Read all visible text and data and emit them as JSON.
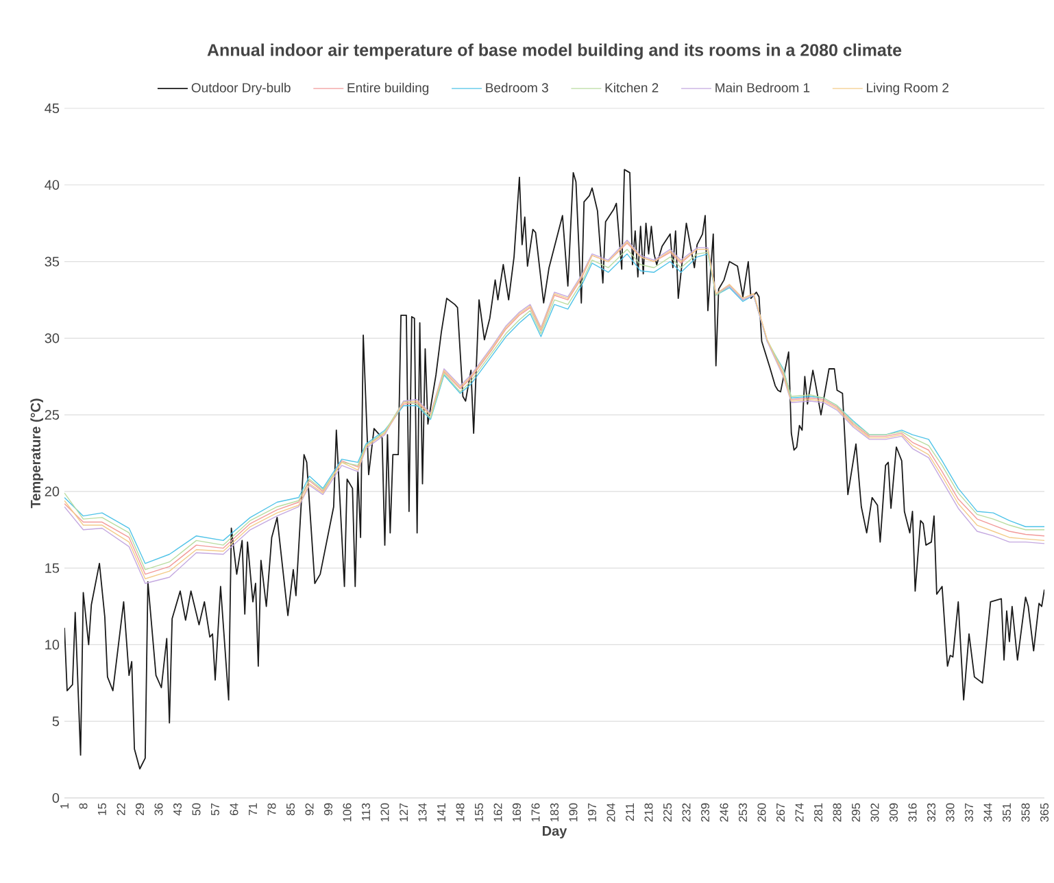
{
  "chart_data": {
    "type": "line",
    "title": "Annual indoor air temperature of base model building and its rooms in a 2080 climate",
    "xlabel": "Day",
    "ylabel": "Temperature (°C)",
    "xlim": [
      1,
      365
    ],
    "xticks": [
      1,
      8,
      15,
      22,
      29,
      36,
      43,
      50,
      57,
      64,
      71,
      78,
      85,
      92,
      99,
      106,
      113,
      120,
      127,
      134,
      141,
      148,
      155,
      162,
      169,
      176,
      183,
      190,
      197,
      204,
      211,
      218,
      225,
      232,
      239,
      246,
      253,
      260,
      267,
      274,
      281,
      288,
      295,
      302,
      309,
      316,
      323,
      330,
      337,
      344,
      351,
      358,
      365
    ],
    "ylim": [
      0,
      45
    ],
    "yticks": [
      0,
      5,
      10,
      15,
      20,
      25,
      30,
      35,
      40,
      45
    ],
    "grid": "y",
    "legend": "top",
    "line_style": "solid",
    "series": [
      {
        "name": "Outdoor Dry-bulb",
        "color": "#1a1a1a",
        "x": [
          1,
          2,
          4,
          5,
          7,
          8,
          10,
          11,
          14,
          16,
          17,
          19,
          23,
          25,
          26,
          27,
          29,
          31,
          32,
          35,
          37,
          39,
          40,
          41,
          44,
          46,
          48,
          51,
          53,
          55,
          56,
          57,
          59,
          62,
          63,
          65,
          67,
          68,
          69,
          71,
          72,
          73,
          74,
          76,
          78,
          80,
          81,
          84,
          86,
          87,
          90,
          91,
          94,
          96,
          101,
          102,
          105,
          106,
          108,
          109,
          110,
          111,
          112,
          114,
          116,
          119,
          120,
          121,
          122,
          123,
          125,
          126,
          128,
          129,
          130,
          131,
          132,
          133,
          134,
          135,
          136,
          139,
          141,
          143,
          146,
          147,
          149,
          150,
          152,
          153,
          155,
          157,
          159,
          161,
          162,
          164,
          166,
          168,
          170,
          171,
          172,
          173,
          175,
          176,
          179,
          181,
          186,
          188,
          190,
          191,
          193,
          194,
          196,
          197,
          199,
          201,
          202,
          205,
          206,
          208,
          209,
          211,
          212,
          213,
          214,
          215,
          216,
          217,
          218,
          219,
          220,
          221,
          223,
          226,
          227,
          228,
          229,
          232,
          235,
          236,
          238,
          239,
          240,
          242,
          243,
          244,
          246,
          248,
          251,
          253,
          255,
          256,
          258,
          259,
          260,
          263,
          265,
          266,
          267,
          270,
          271,
          272,
          273,
          274,
          275,
          276,
          277,
          279,
          280,
          282,
          285,
          287,
          288,
          290,
          292,
          295,
          297,
          299,
          301,
          303,
          304,
          306,
          307,
          308,
          310,
          312,
          313,
          315,
          316,
          317,
          319,
          320,
          321,
          323,
          324,
          325,
          327,
          329,
          330,
          331,
          333,
          335,
          337,
          339,
          342,
          345,
          347,
          349,
          350,
          351,
          352,
          353,
          355,
          358,
          359,
          361,
          363,
          364,
          365
        ],
        "values": [
          11.1,
          7.0,
          7.4,
          12.1,
          2.8,
          13.4,
          10.0,
          12.6,
          15.3,
          11.8,
          7.9,
          7.0,
          12.8,
          8.0,
          8.9,
          3.2,
          1.9,
          2.6,
          14.1,
          8.0,
          7.2,
          10.4,
          4.9,
          11.7,
          13.5,
          11.6,
          13.5,
          11.3,
          12.8,
          10.5,
          10.7,
          7.7,
          13.8,
          6.4,
          17.6,
          14.6,
          16.8,
          12.0,
          16.7,
          12.8,
          14.0,
          8.6,
          15.5,
          12.5,
          17.0,
          18.3,
          16.7,
          11.9,
          14.9,
          13.2,
          22.4,
          21.9,
          14.0,
          14.6,
          19.0,
          24.0,
          13.8,
          20.8,
          20.2,
          13.8,
          21.3,
          17.0,
          30.2,
          21.1,
          24.1,
          23.5,
          16.5,
          23.7,
          17.3,
          22.4,
          22.4,
          31.5,
          31.5,
          18.7,
          31.4,
          31.3,
          17.3,
          31.0,
          20.5,
          29.3,
          24.4,
          27.6,
          30.4,
          32.6,
          32.2,
          32.0,
          26.2,
          25.9,
          27.9,
          23.8,
          32.5,
          29.9,
          31.3,
          33.8,
          32.5,
          34.8,
          32.5,
          35.3,
          40.5,
          36.1,
          37.9,
          34.7,
          37.1,
          36.9,
          32.3,
          34.6,
          38.0,
          33.4,
          40.8,
          40.2,
          32.3,
          38.9,
          39.3,
          39.8,
          38.3,
          33.6,
          37.6,
          38.4,
          38.8,
          34.5,
          41.0,
          40.8,
          34.8,
          37.0,
          34.0,
          37.3,
          34.2,
          37.5,
          35.5,
          37.3,
          35.5,
          34.8,
          36.0,
          36.8,
          34.6,
          37.0,
          32.6,
          37.5,
          34.6,
          36.1,
          36.8,
          38.0,
          31.8,
          36.8,
          28.2,
          33.2,
          33.8,
          35.0,
          34.7,
          32.7,
          35.0,
          32.6,
          33.0,
          32.7,
          29.8,
          28.1,
          26.9,
          26.6,
          26.5,
          29.1,
          23.8,
          22.7,
          22.9,
          24.3,
          24.0,
          27.5,
          25.7,
          27.9,
          27.0,
          25.0,
          28.0,
          28.0,
          26.6,
          26.4,
          19.8,
          23.1,
          19.0,
          17.3,
          19.6,
          19.1,
          16.7,
          21.7,
          21.9,
          18.9,
          22.9,
          22.0,
          18.7,
          17.3,
          18.7,
          13.5,
          18.1,
          17.9,
          16.5,
          16.7,
          18.4,
          13.3,
          13.8,
          8.6,
          9.3,
          9.2,
          12.8,
          6.4,
          10.7,
          7.9,
          7.5,
          12.8,
          12.9,
          13.0,
          9.0,
          12.2,
          10.2,
          12.5,
          9.0,
          13.1,
          12.5,
          9.6,
          12.7,
          12.5,
          13.6
        ]
      },
      {
        "name": "Entire building",
        "color": "#f29a9a",
        "x": [
          1,
          8,
          15,
          25,
          31,
          40,
          50,
          60,
          70,
          80,
          88,
          92,
          97,
          104,
          110,
          113,
          120,
          127,
          132,
          137,
          142,
          148,
          152,
          160,
          165,
          170,
          174,
          178,
          183,
          188,
          193,
          197,
          203,
          210,
          215,
          220,
          226,
          230,
          236,
          240,
          243,
          248,
          253,
          257,
          262,
          268,
          271,
          278,
          283,
          288,
          294,
          300,
          306,
          312,
          316,
          322,
          327,
          333,
          340,
          346,
          352,
          358,
          365
        ],
        "values": [
          19.2,
          18.0,
          18.0,
          17.0,
          14.6,
          15.1,
          16.5,
          16.3,
          17.9,
          18.8,
          19.3,
          20.7,
          20.0,
          22.0,
          21.6,
          23.0,
          23.8,
          25.7,
          25.8,
          25.0,
          27.8,
          26.7,
          27.4,
          29.3,
          30.6,
          31.5,
          32.0,
          30.5,
          32.8,
          32.5,
          33.9,
          35.4,
          35.0,
          36.2,
          35.3,
          35.0,
          35.6,
          34.9,
          35.8,
          35.8,
          32.9,
          33.5,
          32.6,
          32.9,
          29.9,
          27.7,
          26.0,
          26.1,
          26.0,
          25.5,
          24.4,
          23.6,
          23.6,
          23.8,
          23.2,
          22.7,
          21.3,
          19.5,
          18.2,
          17.8,
          17.4,
          17.2,
          17.1
        ]
      },
      {
        "name": "Bedroom 3",
        "color": "#4fc3e8",
        "x": [
          1,
          8,
          15,
          25,
          31,
          40,
          50,
          60,
          70,
          80,
          88,
          92,
          97,
          104,
          110,
          113,
          120,
          127,
          132,
          137,
          142,
          148,
          152,
          160,
          165,
          170,
          174,
          178,
          183,
          188,
          193,
          197,
          203,
          210,
          215,
          220,
          226,
          230,
          236,
          240,
          243,
          248,
          253,
          257,
          262,
          268,
          271,
          278,
          283,
          288,
          294,
          300,
          306,
          312,
          316,
          322,
          327,
          333,
          340,
          346,
          352,
          358,
          365
        ],
        "values": [
          19.6,
          18.4,
          18.6,
          17.6,
          15.3,
          15.9,
          17.1,
          16.8,
          18.3,
          19.3,
          19.6,
          21.0,
          20.2,
          22.1,
          21.9,
          23.1,
          24.0,
          25.6,
          25.6,
          24.7,
          27.6,
          26.4,
          27.0,
          28.9,
          30.1,
          31.0,
          31.6,
          30.1,
          32.2,
          31.9,
          33.4,
          34.9,
          34.3,
          35.5,
          34.4,
          34.3,
          35.0,
          34.3,
          35.3,
          35.5,
          32.8,
          33.3,
          32.4,
          32.8,
          29.8,
          28.0,
          26.1,
          26.2,
          26.1,
          25.6,
          24.6,
          23.7,
          23.7,
          24.0,
          23.7,
          23.4,
          22.0,
          20.2,
          18.7,
          18.6,
          18.1,
          17.7,
          17.7
        ]
      },
      {
        "name": "Kitchen 2",
        "color": "#b9dca0",
        "x": [
          1,
          8,
          15,
          25,
          31,
          40,
          50,
          60,
          70,
          80,
          88,
          92,
          97,
          104,
          110,
          113,
          120,
          127,
          132,
          137,
          142,
          148,
          152,
          160,
          165,
          170,
          174,
          178,
          183,
          188,
          193,
          197,
          203,
          210,
          215,
          220,
          226,
          230,
          236,
          240,
          243,
          248,
          253,
          257,
          262,
          268,
          271,
          278,
          283,
          288,
          294,
          300,
          306,
          312,
          316,
          322,
          327,
          333,
          340,
          346,
          352,
          358,
          365
        ],
        "values": [
          19.9,
          18.2,
          18.3,
          17.3,
          14.9,
          15.4,
          16.8,
          16.5,
          18.1,
          19.0,
          19.4,
          20.8,
          20.1,
          21.9,
          21.7,
          23.0,
          23.9,
          25.9,
          25.7,
          24.8,
          27.7,
          26.5,
          27.2,
          29.1,
          30.3,
          31.2,
          31.8,
          30.3,
          32.5,
          32.2,
          33.6,
          35.1,
          34.6,
          35.8,
          34.8,
          34.6,
          35.3,
          34.6,
          35.5,
          35.6,
          32.8,
          33.4,
          32.5,
          32.8,
          29.9,
          27.9,
          26.2,
          26.3,
          26.1,
          25.6,
          24.5,
          23.7,
          23.7,
          23.9,
          23.5,
          23.0,
          21.7,
          19.9,
          18.5,
          18.2,
          17.8,
          17.5,
          17.5
        ]
      },
      {
        "name": "Main Bedroom 1",
        "color": "#c4a8e0",
        "x": [
          1,
          8,
          15,
          25,
          31,
          40,
          50,
          60,
          70,
          80,
          88,
          92,
          97,
          104,
          110,
          113,
          120,
          127,
          132,
          137,
          142,
          148,
          152,
          160,
          165,
          170,
          174,
          178,
          183,
          188,
          193,
          197,
          203,
          210,
          215,
          220,
          226,
          230,
          236,
          240,
          243,
          248,
          253,
          257,
          262,
          268,
          271,
          278,
          283,
          288,
          294,
          300,
          306,
          312,
          316,
          322,
          327,
          333,
          340,
          346,
          352,
          358,
          365
        ],
        "values": [
          19.0,
          17.5,
          17.6,
          16.4,
          14.0,
          14.4,
          16.0,
          15.9,
          17.5,
          18.4,
          19.0,
          20.4,
          19.8,
          21.7,
          21.3,
          22.8,
          23.7,
          25.9,
          26.0,
          25.1,
          28.0,
          26.9,
          27.6,
          29.5,
          30.8,
          31.7,
          32.2,
          30.7,
          33.0,
          32.7,
          34.1,
          35.5,
          35.1,
          36.4,
          35.4,
          35.1,
          35.8,
          35.1,
          35.9,
          35.9,
          32.9,
          33.4,
          32.5,
          32.8,
          29.8,
          27.5,
          25.8,
          25.9,
          25.8,
          25.3,
          24.2,
          23.4,
          23.4,
          23.6,
          22.8,
          22.2,
          20.7,
          18.9,
          17.4,
          17.1,
          16.7,
          16.7,
          16.6
        ]
      },
      {
        "name": "Living Room 2",
        "color": "#f3cc8a",
        "x": [
          1,
          8,
          15,
          25,
          31,
          40,
          50,
          60,
          70,
          80,
          88,
          92,
          97,
          104,
          110,
          113,
          120,
          127,
          132,
          137,
          142,
          148,
          152,
          160,
          165,
          170,
          174,
          178,
          183,
          188,
          193,
          197,
          203,
          210,
          215,
          220,
          226,
          230,
          236,
          240,
          243,
          248,
          253,
          257,
          262,
          268,
          271,
          278,
          283,
          288,
          294,
          300,
          306,
          312,
          316,
          322,
          327,
          333,
          340,
          346,
          352,
          358,
          365
        ],
        "values": [
          19.4,
          17.8,
          17.8,
          16.7,
          14.3,
          14.8,
          16.2,
          16.1,
          17.7,
          18.6,
          19.1,
          20.5,
          19.9,
          21.9,
          21.4,
          22.9,
          23.8,
          25.8,
          25.9,
          25.0,
          27.9,
          26.8,
          27.5,
          29.4,
          30.7,
          31.6,
          32.1,
          30.6,
          32.9,
          32.6,
          34.0,
          35.4,
          35.0,
          36.3,
          35.3,
          35.0,
          35.7,
          35.0,
          35.8,
          35.8,
          32.9,
          33.5,
          32.6,
          32.9,
          29.9,
          27.6,
          25.9,
          26.0,
          25.9,
          25.4,
          24.3,
          23.5,
          23.5,
          23.7,
          23.0,
          22.4,
          21.0,
          19.2,
          17.8,
          17.4,
          17.0,
          16.9,
          16.8
        ]
      }
    ]
  }
}
